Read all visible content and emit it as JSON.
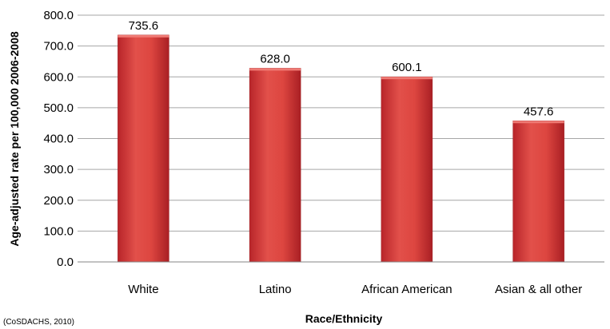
{
  "chart_data": {
    "type": "bar",
    "categories": [
      "White",
      "Latino",
      "African American",
      "Asian & all other"
    ],
    "values": [
      735.6,
      628.0,
      600.1,
      457.6
    ],
    "data_labels": [
      "735.6",
      "628.0",
      "600.1",
      "457.6"
    ],
    "xlabel": "Race/Ethnicity",
    "ylabel": "Age-adjusted rate per 100,000 2006-2008",
    "ylim": [
      0,
      800
    ],
    "yticks": [
      "0.0",
      "100.0",
      "200.0",
      "300.0",
      "400.0",
      "500.0",
      "600.0",
      "700.0",
      "800.0"
    ],
    "grid": true,
    "legend": "none",
    "bar_color": "#d9403c",
    "source_note": "(CoSDACHS, 2010)"
  }
}
